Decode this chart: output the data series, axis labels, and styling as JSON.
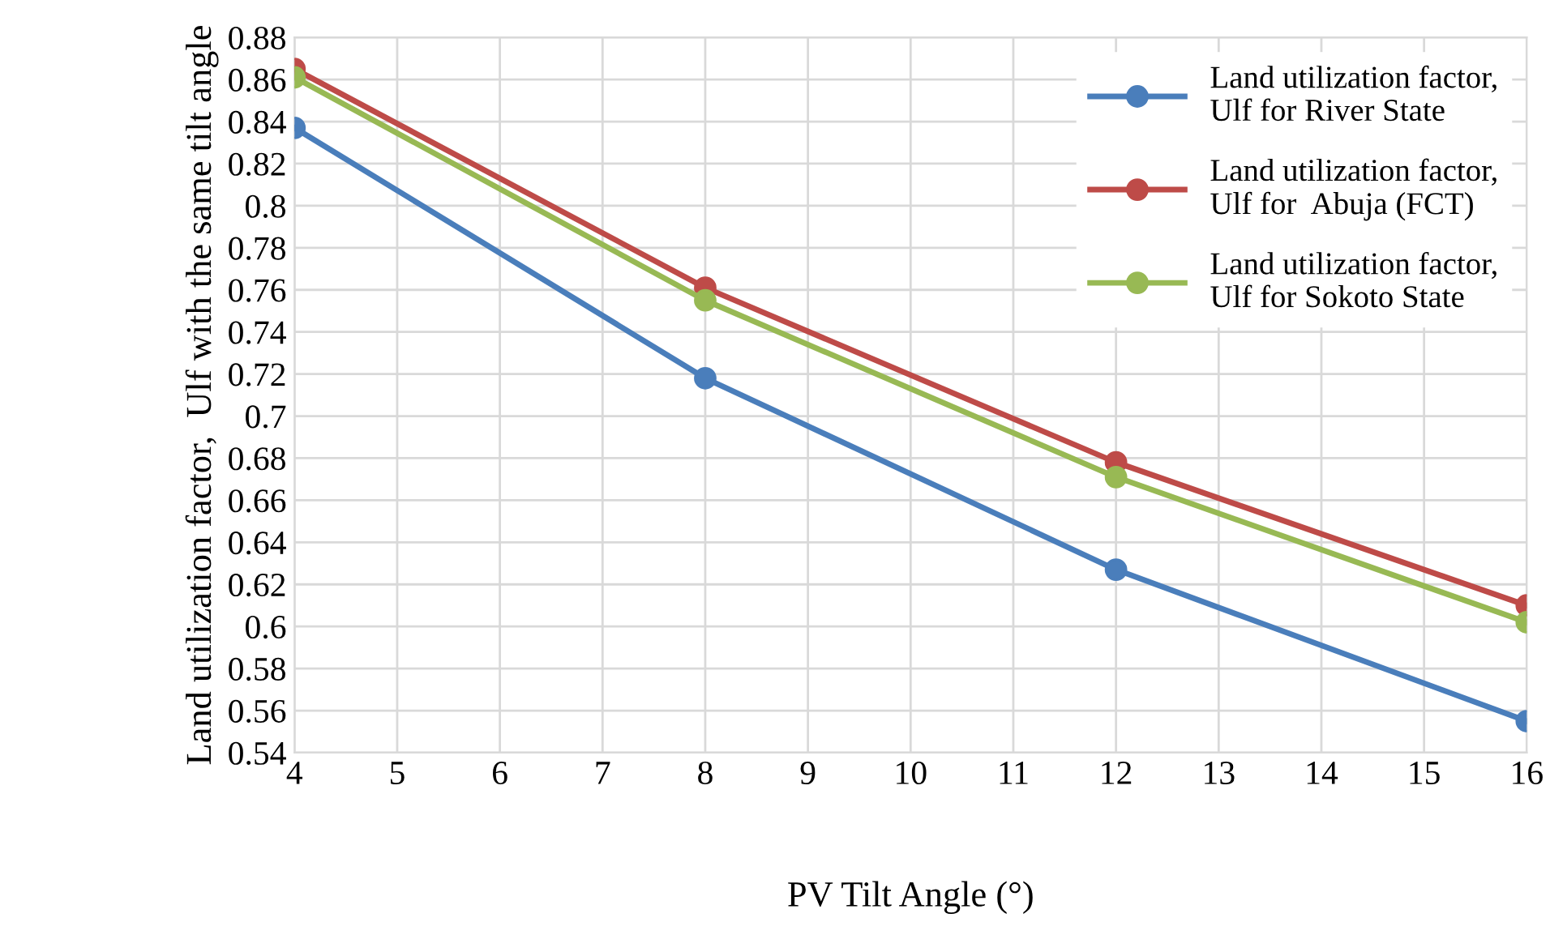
{
  "chart_data": {
    "type": "line",
    "xlabel": "PV Tilt Angle (°)",
    "ylabel": "Land utilization factor,  Ulf with the same tilt angle",
    "x": [
      4,
      8,
      12,
      16
    ],
    "series": [
      {
        "name": "Land utilization factor, Ulf for River State",
        "color": "#4a7ebb",
        "values": [
          0.837,
          0.718,
          0.627,
          0.555
        ]
      },
      {
        "name": "Land utilization factor, Ulf for  Abuja (FCT)",
        "color": "#be4b48",
        "values": [
          0.865,
          0.761,
          0.678,
          0.61
        ]
      },
      {
        "name": "Land utilization factor, Ulf for Sokoto State",
        "color": "#98b954",
        "values": [
          0.861,
          0.755,
          0.671,
          0.602
        ]
      }
    ],
    "xlim": [
      4,
      16
    ],
    "xticks": [
      4,
      5,
      6,
      7,
      8,
      9,
      10,
      11,
      12,
      13,
      14,
      15,
      16
    ],
    "ylim": [
      0.54,
      0.88
    ],
    "yticks": [
      0.54,
      0.56,
      0.58,
      0.6,
      0.62,
      0.64,
      0.66,
      0.68,
      0.7,
      0.72,
      0.74,
      0.76,
      0.78,
      0.8,
      0.82,
      0.84,
      0.86,
      0.88
    ],
    "grid": true,
    "legend": "top right",
    "marker": "circle",
    "line_style": "solid"
  }
}
